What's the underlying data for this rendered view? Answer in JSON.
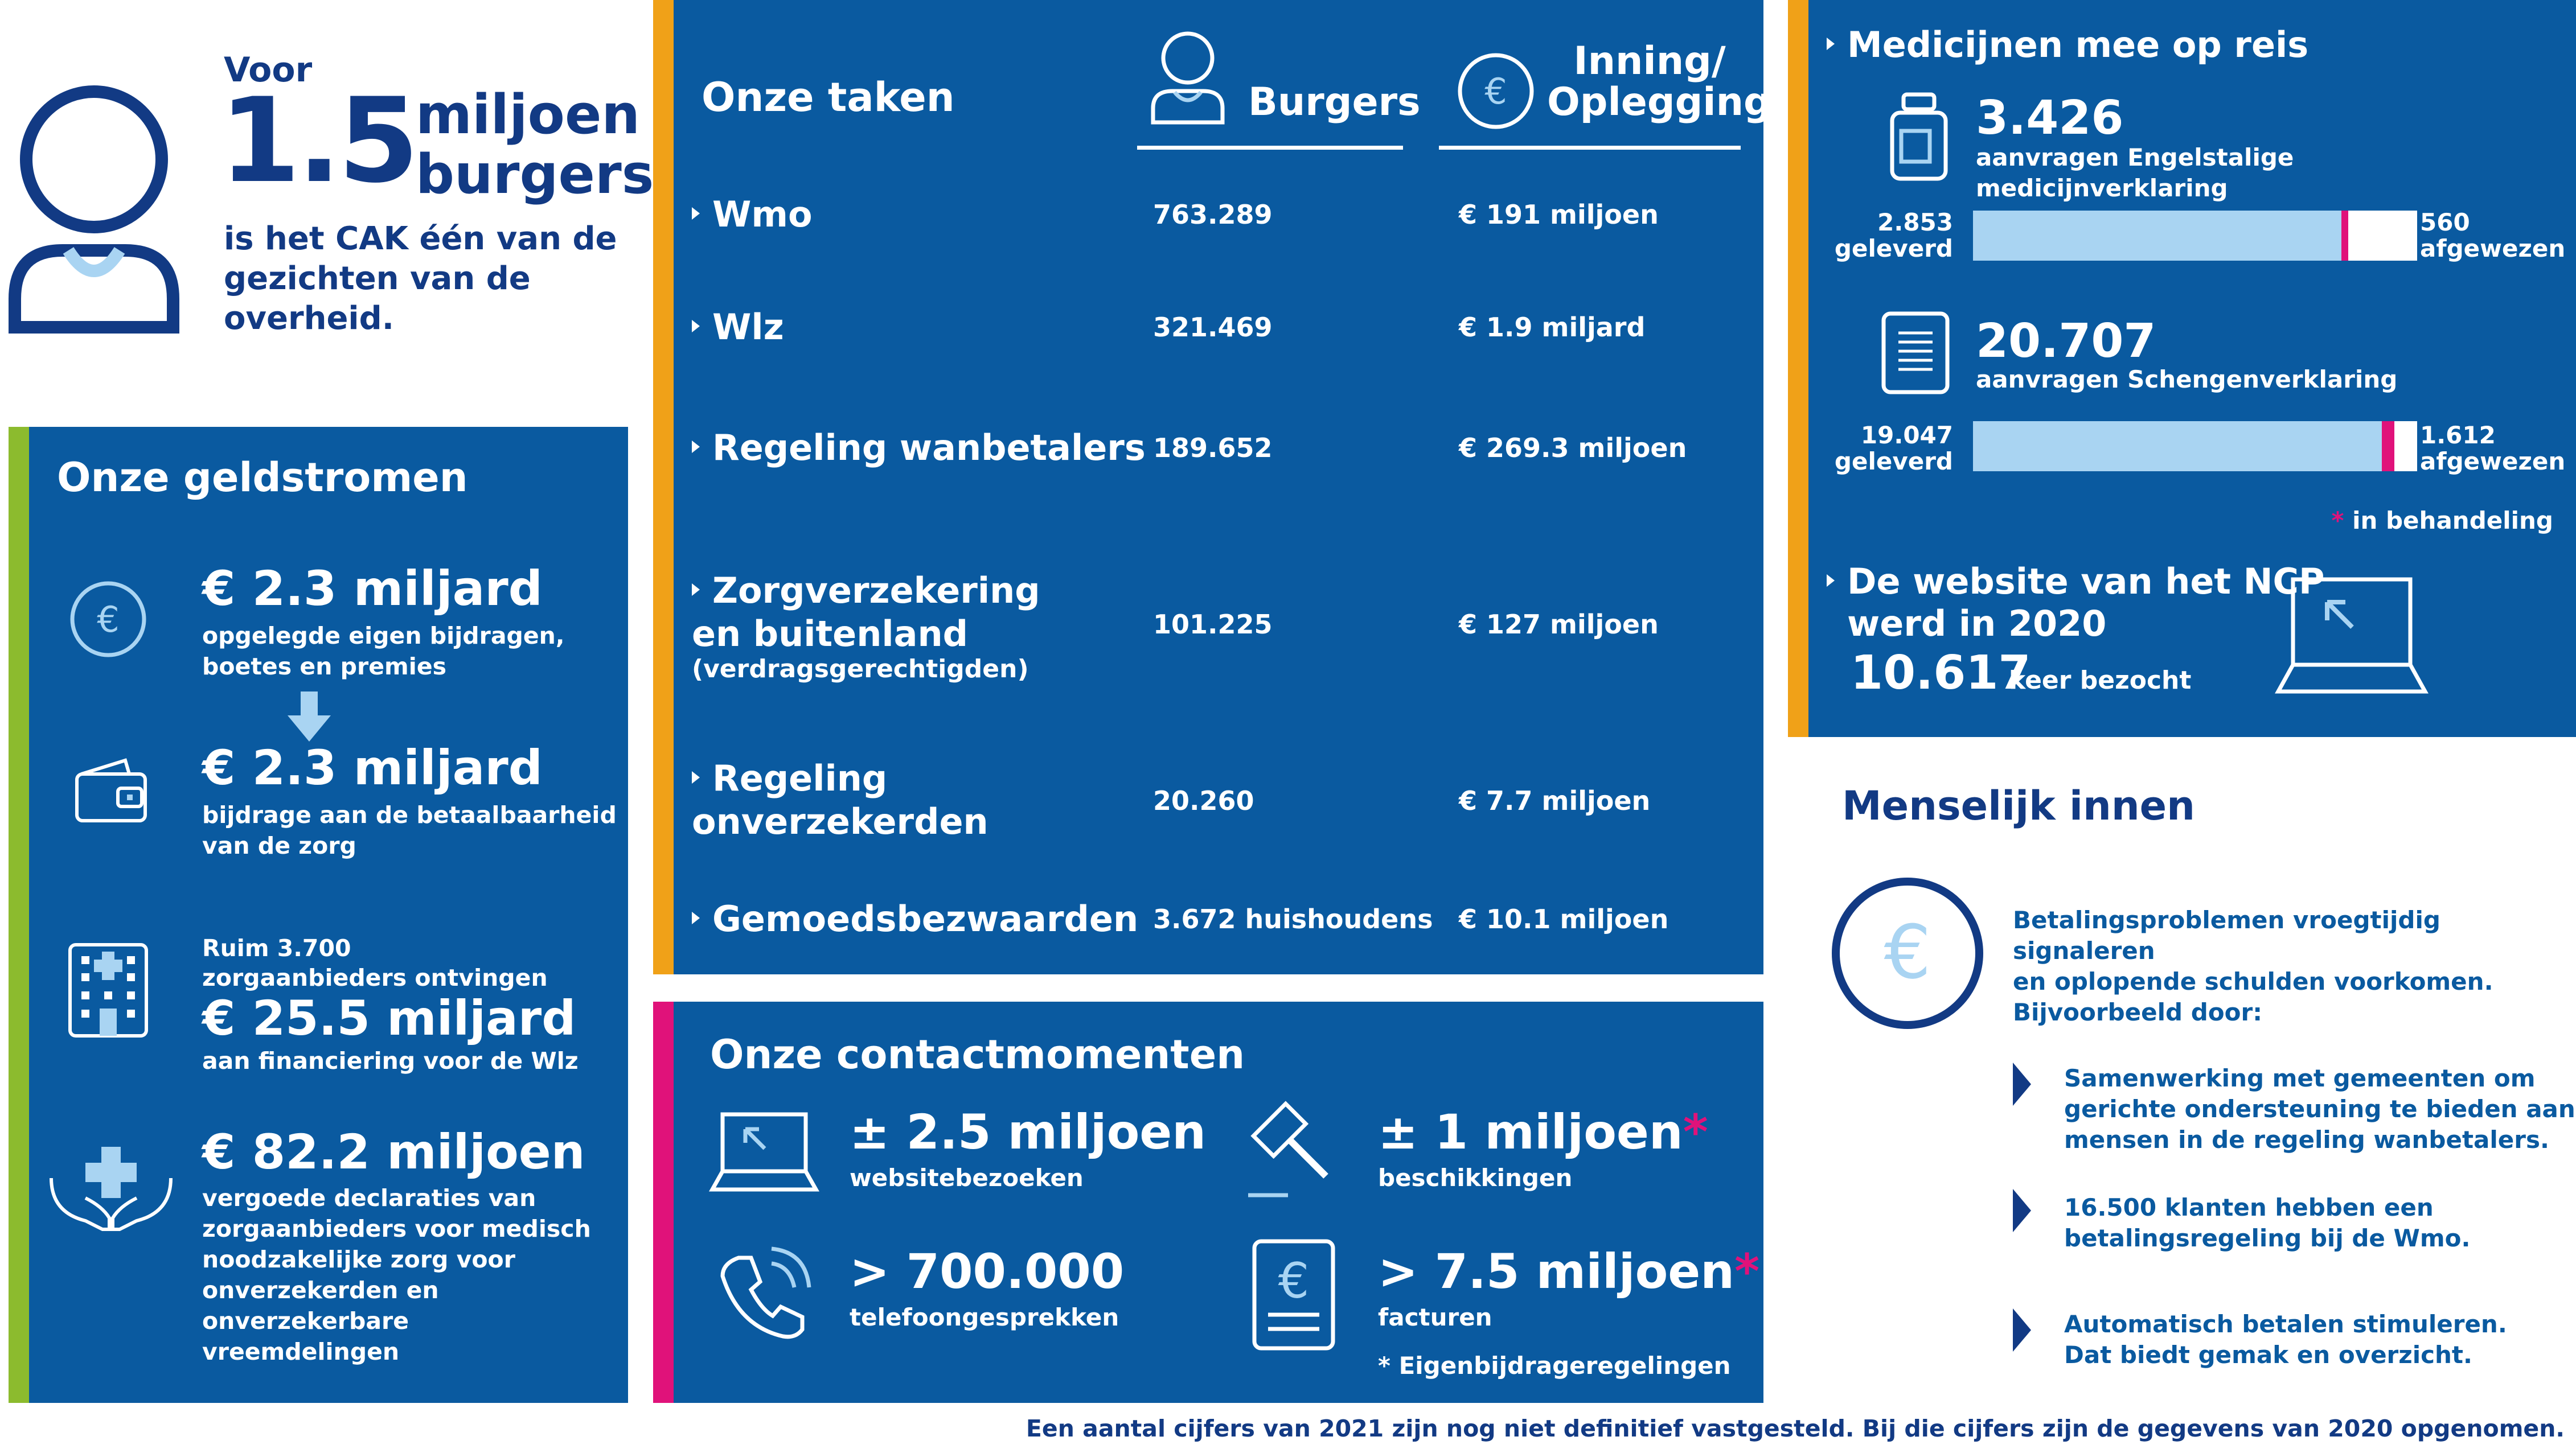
{
  "hero": {
    "voor": "Voor",
    "number": "1.5",
    "unit1": "miljoen",
    "unit2": "burgers",
    "desc1": "is het CAK één van de",
    "desc2": "gezichten van de",
    "desc3": "overheid."
  },
  "geldstromen": {
    "title": "Onze geldstromen",
    "items": [
      {
        "amount": "€ 2.3 miljard",
        "line1": "opgelegde eigen bijdragen,",
        "line2": "boetes en premies",
        "icon": "euro-circle-icon"
      },
      {
        "amount": "€ 2.3 miljard",
        "line1": "bijdrage aan de betaalbaarheid",
        "line2": "van de zorg",
        "icon": "wallet-icon"
      },
      {
        "pre1": "Ruim 3.700",
        "pre2": "zorgaanbieders ontvingen",
        "amount": "€ 25.5 miljard",
        "line1": "aan financiering voor de Wlz",
        "icon": "hospital-icon"
      },
      {
        "amount": "€ 82.2 miljoen",
        "line1": "vergoede declaraties van",
        "line2": "zorgaanbieders voor medisch",
        "line3": "noodzakelijke zorg voor",
        "line4": "onverzekerden en onverzekerbare",
        "line5": "vreemdelingen",
        "icon": "care-hands-icon"
      }
    ]
  },
  "taken": {
    "title": "Onze taken",
    "col_burgers": "Burgers",
    "col_inning1": "Inning/",
    "col_inning2": "Oplegging",
    "rows": [
      {
        "label1": "Wmo",
        "burgers": "763.289",
        "inning": "€ 191 miljoen"
      },
      {
        "label1": "Wlz",
        "burgers": "321.469",
        "inning": "€ 1.9 miljard"
      },
      {
        "label1": "Regeling wanbetalers",
        "burgers": "189.652",
        "inning": "€ 269.3 miljoen"
      },
      {
        "label1": "Zorgverzekering",
        "label2": "en buitenland",
        "label3": "(verdragsgerechtigden)",
        "burgers": "101.225",
        "inning": "€ 127 miljoen"
      },
      {
        "label1": "Regeling",
        "label2": "onverzekerden",
        "burgers": "20.260",
        "inning": "€ 7.7 miljoen"
      },
      {
        "label1": "Gemoedsbezwaarden",
        "burgers": "3.672 huishoudens",
        "inning": "€ 10.1 miljoen"
      }
    ]
  },
  "contact": {
    "title": "Onze contactmomenten",
    "items": [
      {
        "value": "± 2.5 miljoen",
        "label": "websitebezoeken",
        "icon": "laptop-icon"
      },
      {
        "value": "± 1 miljoen",
        "star": "*",
        "label": "beschikkingen",
        "icon": "gavel-icon"
      },
      {
        "value": "> 700.000",
        "label": "telefoongesprekken",
        "icon": "phone-icon"
      },
      {
        "value": "> 7.5 miljoen",
        "star": "*",
        "label": "facturen",
        "icon": "invoice-icon"
      }
    ],
    "footnote": "* Eigenbijdrageregelingen"
  },
  "medicijnen": {
    "title": "Medicijnen mee op reis",
    "items": [
      {
        "value": "3.426",
        "line1": "aanvragen Engelstalige",
        "line2": "medicijnverklaring",
        "geleverd_num": "2.853",
        "geleverd_label": "geleverd",
        "afgewezen_num": "560",
        "afgewezen_label": "afgewezen",
        "delivered_fraction": 0.83,
        "icon": "pill-bottle-icon"
      },
      {
        "value": "20.707",
        "line1": "aanvragen Schengenverklaring",
        "geleverd_num": "19.047",
        "geleverd_label": "geleverd",
        "afgewezen_num": "1.612",
        "afgewezen_label": "afgewezen",
        "delivered_fraction": 0.92,
        "icon": "document-icon"
      }
    ],
    "legend_star": "*",
    "legend_text": "in behandeling",
    "website_title1": "De website van het NCP",
    "website_title2": "werd in 2020",
    "website_value": "10.617",
    "website_label": "keer bezocht"
  },
  "menselijk": {
    "title": "Menselijk innen",
    "intro1": "Betalingsproblemen vroegtijdig signaleren",
    "intro2": "en oplopende schulden voorkomen.",
    "intro3": "Bijvoorbeeld door:",
    "bullets": [
      {
        "l1": "Samenwerking met gemeenten om",
        "l2": "gerichte ondersteuning te bieden aan",
        "l3": "mensen in de regeling wanbetalers."
      },
      {
        "l1": "16.500 klanten hebben een",
        "l2": "betalingsregeling bij de Wmo."
      },
      {
        "l1": "Automatisch betalen stimuleren.",
        "l2": "Dat biedt gemak en overzicht."
      }
    ]
  },
  "footer": "Een aantal cijfers van 2021 zijn nog niet definitief vastgesteld. Bij die cijfers zijn de gegevens van 2020 opgenomen.",
  "colors": {
    "panel": "#0a5aa0",
    "navy": "#123a84",
    "light_blue": "#a9d4f2",
    "pink": "#e0127a",
    "orange": "#f0a118",
    "green": "#8cbb2e"
  }
}
